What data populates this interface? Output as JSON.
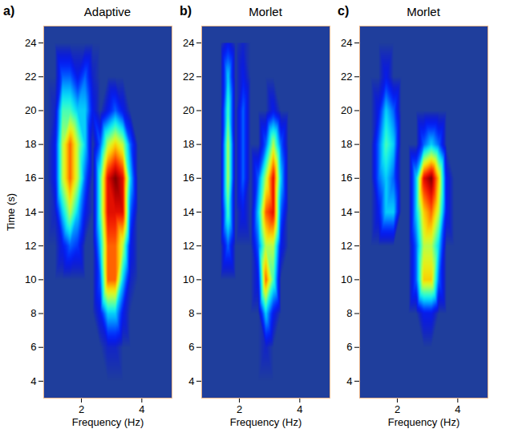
{
  "chart_data": {
    "type": "heatmap",
    "xlabel": "Frequency (Hz)",
    "xlim": [
      0.75,
      5
    ],
    "ylim": [
      3,
      25
    ],
    "xticks": [
      2,
      4
    ],
    "yticks": [
      4,
      6,
      8,
      10,
      12,
      14,
      16,
      18,
      20,
      22,
      24
    ],
    "zlim": [
      0,
      9
    ],
    "x": [
      0.875,
      1.125,
      1.375,
      1.625,
      1.875,
      2.125,
      2.375,
      2.625,
      2.875,
      3.125,
      3.375,
      3.625,
      3.875,
      4.125,
      4.375,
      4.625,
      4.875
    ],
    "y": [
      4,
      6,
      8,
      10,
      12,
      14,
      16,
      18,
      20,
      22,
      24
    ],
    "panels": [
      {
        "letter": "a)",
        "title": "Adaptive",
        "ylabel": "Time (s)",
        "cells": [
          [
            0,
            0,
            0,
            0,
            0,
            0,
            0,
            0,
            0,
            0,
            0,
            0,
            0,
            0,
            0,
            0,
            0
          ],
          [
            0,
            0,
            0,
            0,
            0,
            0,
            0,
            0,
            0.5,
            0.5,
            0,
            0,
            0,
            0,
            0,
            0,
            0
          ],
          [
            0,
            0,
            0,
            0,
            0,
            0,
            0,
            1,
            3,
            3,
            1,
            0,
            0,
            0,
            0,
            0,
            0
          ],
          [
            0,
            0,
            0,
            0,
            0,
            0,
            0,
            2,
            7,
            7,
            3,
            0.5,
            0,
            0,
            0,
            0,
            0
          ],
          [
            0,
            0,
            1,
            2,
            1.5,
            0,
            0,
            3,
            7,
            7,
            5,
            1,
            0,
            0,
            0,
            0,
            0
          ],
          [
            0,
            0.5,
            3,
            5,
            3,
            1,
            0,
            4,
            8,
            8,
            8,
            2,
            0,
            0,
            0,
            0,
            0
          ],
          [
            0,
            1,
            5,
            7,
            5,
            2,
            0,
            4,
            8,
            9,
            8,
            3,
            0,
            0,
            0,
            0,
            0
          ],
          [
            0,
            1,
            5,
            7,
            5,
            3,
            0,
            2,
            5,
            6,
            5,
            2,
            0,
            0,
            0,
            0,
            0
          ],
          [
            0,
            0.5,
            4,
            4,
            3,
            3,
            1,
            0,
            1,
            2,
            1,
            0,
            0,
            0,
            0,
            0,
            0
          ],
          [
            0,
            0,
            2,
            2,
            1,
            2,
            0.5,
            0,
            0,
            0,
            0,
            0,
            0,
            0,
            0,
            0,
            0
          ],
          [
            0,
            0,
            0,
            0,
            0,
            0,
            0,
            0,
            0,
            0,
            0,
            0,
            0,
            0,
            0,
            0,
            0
          ]
        ]
      },
      {
        "letter": "b)",
        "title": "Morlet",
        "cells": [
          [
            0,
            0,
            0,
            0,
            0,
            0,
            0,
            0,
            0,
            0,
            0,
            0,
            0,
            0,
            0,
            0,
            0
          ],
          [
            0,
            0,
            0,
            0,
            0,
            0,
            0,
            0,
            0.5,
            0,
            0,
            0,
            0,
            0,
            0,
            0,
            0
          ],
          [
            0,
            0,
            0,
            0,
            0,
            0,
            0,
            0,
            3,
            1,
            0,
            0,
            0,
            0,
            0,
            0,
            0
          ],
          [
            0,
            0,
            0,
            0,
            0,
            0,
            0,
            1,
            7,
            4,
            0,
            0,
            0,
            0,
            0,
            0,
            0
          ],
          [
            0,
            0,
            0,
            2,
            0,
            0,
            0,
            2,
            5,
            5,
            1,
            0,
            0,
            0,
            0,
            0,
            0
          ],
          [
            0,
            0,
            0,
            4,
            0,
            1,
            0,
            3,
            7,
            8,
            2,
            0,
            0,
            0,
            0,
            0,
            0
          ],
          [
            0,
            0,
            0,
            5,
            0,
            2,
            0,
            2,
            5,
            8,
            3,
            0,
            0,
            0,
            0,
            0,
            0
          ],
          [
            0,
            0,
            0,
            5,
            0,
            2,
            0,
            0,
            2,
            5,
            2,
            0,
            0,
            0,
            0,
            0,
            0
          ],
          [
            0,
            0,
            0,
            4,
            0,
            2,
            0,
            0,
            0,
            1,
            0,
            0,
            0,
            0,
            0,
            0,
            0
          ],
          [
            0,
            0,
            0,
            3,
            0,
            1,
            0,
            0,
            0,
            0,
            0,
            0,
            0,
            0,
            0,
            0,
            0
          ],
          [
            0,
            0,
            0,
            1,
            0,
            0.5,
            0,
            0,
            0,
            0,
            0,
            0,
            0,
            0,
            0,
            0,
            0
          ]
        ]
      },
      {
        "letter": "c)",
        "title": "Morlet",
        "cells": [
          [
            0,
            0,
            0,
            0,
            0,
            0,
            0,
            0,
            0,
            0,
            0,
            0,
            0,
            0,
            0,
            0,
            0
          ],
          [
            0,
            0,
            0,
            0,
            0,
            0,
            0,
            0,
            0,
            0,
            0,
            0,
            0,
            0,
            0,
            0,
            0
          ],
          [
            0,
            0,
            0,
            0,
            0,
            0,
            0,
            0,
            1,
            1,
            0,
            0,
            0,
            0,
            0,
            0,
            0
          ],
          [
            0,
            0,
            0,
            0,
            0,
            0,
            0,
            2,
            6,
            6,
            2,
            0,
            0,
            0,
            0,
            0,
            0
          ],
          [
            0,
            0,
            0,
            0,
            0,
            0,
            0,
            2,
            5,
            5,
            3,
            0,
            0,
            0,
            0,
            0,
            0
          ],
          [
            0,
            0,
            1,
            3,
            3,
            0,
            0,
            3,
            6,
            7,
            5,
            1,
            0,
            0,
            0,
            0,
            0
          ],
          [
            0,
            0,
            2,
            3,
            2,
            0,
            0,
            3,
            8,
            9,
            6,
            1,
            0,
            0,
            0,
            0,
            0
          ],
          [
            0,
            0,
            2,
            4,
            3,
            0,
            0,
            0,
            2,
            3,
            2,
            0,
            0,
            0,
            0,
            0,
            0
          ],
          [
            0,
            0,
            1,
            3,
            2,
            0,
            0,
            0,
            0,
            0,
            0,
            0,
            0,
            0,
            0,
            0,
            0
          ],
          [
            0,
            0,
            0,
            1,
            0,
            0,
            0,
            0,
            0,
            0,
            0,
            0,
            0,
            0,
            0,
            0,
            0
          ],
          [
            0,
            0,
            0,
            0,
            0,
            0,
            0,
            0,
            0,
            0,
            0,
            0,
            0,
            0,
            0,
            0,
            0
          ]
        ]
      }
    ]
  }
}
